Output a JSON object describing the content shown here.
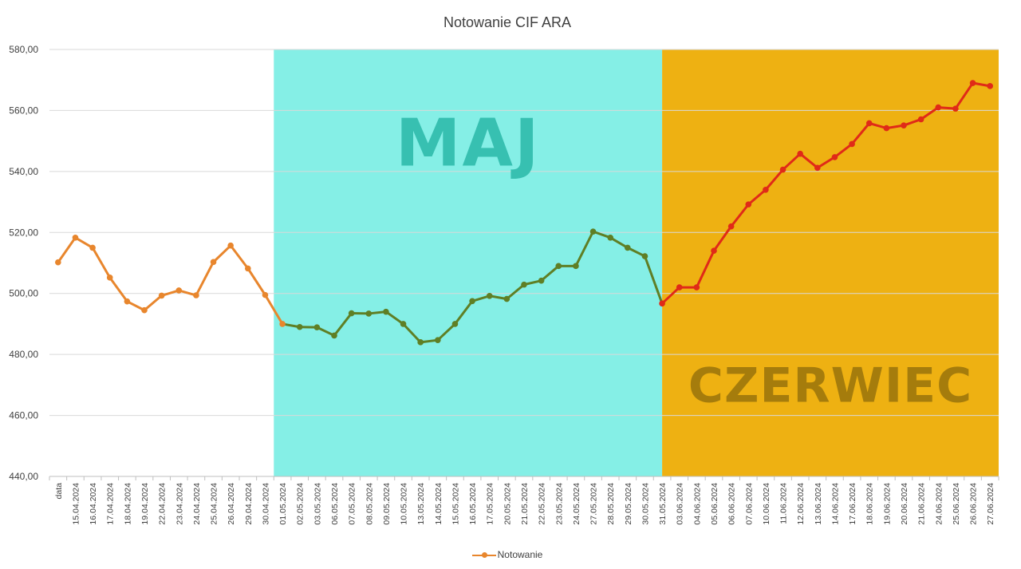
{
  "chart_data": {
    "type": "line",
    "title": "Notowanie CIF ARA",
    "ylim": [
      440,
      580
    ],
    "yticks": [
      "440,00",
      "460,00",
      "480,00",
      "500,00",
      "520,00",
      "540,00",
      "560,00",
      "580,00"
    ],
    "grid": true,
    "legend_position": "bottom",
    "categories": [
      "data",
      "15.04.2024",
      "16.04.2024",
      "17.04.2024",
      "18.04.2024",
      "19.04.2024",
      "22.04.2024",
      "23.04.2024",
      "24.04.2024",
      "25.04.2024",
      "26.04.2024",
      "29.04.2024",
      "30.04.2024",
      "01.05.2024",
      "02.05.2024",
      "03.05.2024",
      "06.05.2024",
      "07.05.2024",
      "08.05.2024",
      "09.05.2024",
      "10.05.2024",
      "13.05.2024",
      "14.05.2024",
      "15.05.2024",
      "16.05.2024",
      "17.05.2024",
      "20.05.2024",
      "21.05.2024",
      "22.05.2024",
      "23.05.2024",
      "24.05.2024",
      "27.05.2024",
      "28.05.2024",
      "29.05.2024",
      "30.05.2024",
      "31.05.2024",
      "03.06.2024",
      "04.06.2024",
      "05.06.2024",
      "06.06.2024",
      "07.06.2024",
      "10.06.2024",
      "11.06.2024",
      "12.06.2024",
      "13.06.2024",
      "14.06.2024",
      "17.06.2024",
      "18.06.2024",
      "19.06.2024",
      "20.06.2024",
      "21.06.2024",
      "24.06.2024",
      "25.06.2024",
      "26.06.2024",
      "27.06.2024"
    ],
    "series": [
      {
        "name": "Notowanie",
        "color": "#e8862d",
        "values": [
          510.2,
          518.3,
          515.0,
          505.2,
          497.4,
          494.5,
          499.3,
          501.0,
          499.4,
          510.3,
          515.7,
          508.2,
          499.5,
          490.0,
          489.0,
          488.9,
          486.2,
          493.5,
          493.4,
          494.0,
          490.0,
          484.0,
          484.7,
          490.0,
          497.5,
          499.2,
          498.2,
          502.9,
          504.2,
          509.0,
          509.0,
          520.3,
          518.3,
          515.0,
          512.2,
          496.7,
          502.0,
          502.0,
          514.0,
          522.0,
          529.2,
          534.0,
          540.6,
          545.8,
          541.2,
          544.7,
          549.0,
          555.8,
          554.2,
          555.1,
          557.1,
          561.0,
          560.6,
          569.0,
          568.0
        ]
      }
    ],
    "segment_colors": {
      "april": "#e8862d",
      "may": "#5f7f25",
      "june": "#e02a18"
    },
    "regions": [
      {
        "label": "MAJ",
        "from_category": "01.05.2024",
        "to_category": "31.05.2024",
        "color": "#85efe6",
        "text_color": "#37c0b1"
      },
      {
        "label": "CZERWIEC",
        "from_category": "31.05.2024",
        "to_category": "27.06.2024",
        "color": "#eeb112",
        "text_color": "#a57c0c"
      }
    ]
  }
}
